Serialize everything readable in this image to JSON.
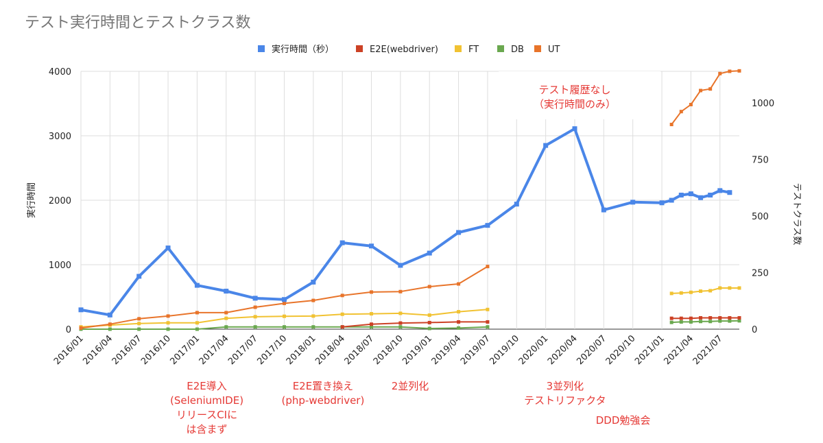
{
  "chart_data": {
    "type": "line",
    "title": "テスト実行時間とテストクラス数",
    "legend_position": "top",
    "grid": true,
    "y_left": {
      "label": "実行時間",
      "range": [
        0,
        4000
      ],
      "ticks": [
        "0",
        "1000",
        "2000",
        "3000",
        "4000"
      ],
      "tick_values": [
        0,
        1000,
        2000,
        3000,
        4000
      ]
    },
    "y_right": {
      "label": "テストクラス数",
      "range": [
        0,
        1140
      ],
      "ticks": [
        "0",
        "250",
        "500",
        "750",
        "1000"
      ],
      "tick_values": [
        0,
        250,
        500,
        750,
        1000
      ]
    },
    "x_ticks": [
      "2016/01",
      "2016/04",
      "2016/07",
      "2016/10",
      "2017/01",
      "2017/04",
      "2017/07",
      "2017/10",
      "2018/01",
      "2018/04",
      "2018/07",
      "2018/10",
      "2019/01",
      "2019/04",
      "2019/07",
      "2019/10",
      "2020/01",
      "2020/04",
      "2020/07",
      "2020/10",
      "2021/01",
      "2021/04",
      "2021/07"
    ],
    "series": [
      {
        "name": "実行時間（秒）",
        "axis": "left",
        "color": "#4a86e8",
        "points": [
          [
            "2016/01",
            300
          ],
          [
            "2016/04",
            220
          ],
          [
            "2016/07",
            820
          ],
          [
            "2016/10",
            1260
          ],
          [
            "2017/01",
            680
          ],
          [
            "2017/04",
            590
          ],
          [
            "2017/07",
            480
          ],
          [
            "2017/10",
            460
          ],
          [
            "2018/01",
            730
          ],
          [
            "2018/04",
            1340
          ],
          [
            "2018/07",
            1290
          ],
          [
            "2018/10",
            990
          ],
          [
            "2019/01",
            1180
          ],
          [
            "2019/04",
            1500
          ],
          [
            "2019/07",
            1610
          ],
          [
            "2019/10",
            1940
          ],
          [
            "2020/01",
            2850
          ],
          [
            "2020/04",
            3110
          ],
          [
            "2020/07",
            1850
          ],
          [
            "2020/10",
            1970
          ],
          [
            "2021/01",
            1960
          ],
          [
            "2021/02",
            2000
          ],
          [
            "2021/03",
            2080
          ],
          [
            "2021/04",
            2100
          ],
          [
            "2021/05",
            2040
          ],
          [
            "2021/06",
            2080
          ],
          [
            "2021/07",
            2150
          ],
          [
            "2021/08",
            2120
          ]
        ]
      },
      {
        "name": "E2E(webdriver)",
        "axis": "right",
        "color": "#cc4125",
        "points": [
          [
            "2018/04",
            10
          ],
          [
            "2018/07",
            22
          ],
          [
            "2018/10",
            27
          ],
          [
            "2019/01",
            29
          ],
          [
            "2019/04",
            32
          ],
          [
            "2019/07",
            32
          ],
          [
            "2021/02",
            48
          ],
          [
            "2021/03",
            48
          ],
          [
            "2021/04",
            48
          ],
          [
            "2021/05",
            50
          ],
          [
            "2021/06",
            50
          ],
          [
            "2021/07",
            50
          ],
          [
            "2021/08",
            50
          ],
          [
            "2021/09",
            50
          ]
        ]
      },
      {
        "name": "FT",
        "axis": "right",
        "color": "#f1c232",
        "points": [
          [
            "2016/01",
            10
          ],
          [
            "2016/04",
            18
          ],
          [
            "2016/07",
            25
          ],
          [
            "2016/10",
            28
          ],
          [
            "2017/01",
            28
          ],
          [
            "2017/04",
            48
          ],
          [
            "2017/07",
            55
          ],
          [
            "2017/10",
            57
          ],
          [
            "2018/01",
            58
          ],
          [
            "2018/04",
            66
          ],
          [
            "2018/07",
            68
          ],
          [
            "2018/10",
            70
          ],
          [
            "2019/01",
            62
          ],
          [
            "2019/04",
            77
          ],
          [
            "2019/07",
            87
          ],
          [
            "2021/02",
            158
          ],
          [
            "2021/03",
            160
          ],
          [
            "2021/04",
            163
          ],
          [
            "2021/05",
            168
          ],
          [
            "2021/06",
            170
          ],
          [
            "2021/07",
            182
          ],
          [
            "2021/08",
            182
          ],
          [
            "2021/09",
            182
          ]
        ]
      },
      {
        "name": "DB",
        "axis": "right",
        "color": "#6aa84f",
        "points": [
          [
            "2016/01",
            0
          ],
          [
            "2016/04",
            0
          ],
          [
            "2016/07",
            0
          ],
          [
            "2016/10",
            0
          ],
          [
            "2017/01",
            0
          ],
          [
            "2017/04",
            10
          ],
          [
            "2017/07",
            10
          ],
          [
            "2017/10",
            10
          ],
          [
            "2018/01",
            10
          ],
          [
            "2018/04",
            10
          ],
          [
            "2018/07",
            10
          ],
          [
            "2018/10",
            10
          ],
          [
            "2019/01",
            3
          ],
          [
            "2019/04",
            5
          ],
          [
            "2019/07",
            10
          ],
          [
            "2021/02",
            30
          ],
          [
            "2021/03",
            32
          ],
          [
            "2021/04",
            32
          ],
          [
            "2021/05",
            34
          ],
          [
            "2021/06",
            34
          ],
          [
            "2021/07",
            36
          ],
          [
            "2021/08",
            36
          ],
          [
            "2021/09",
            37
          ]
        ]
      },
      {
        "name": "UT",
        "axis": "right",
        "color": "#e8742a",
        "points": [
          [
            "2016/01",
            5
          ],
          [
            "2016/04",
            22
          ],
          [
            "2016/07",
            46
          ],
          [
            "2016/10",
            58
          ],
          [
            "2017/01",
            73
          ],
          [
            "2017/04",
            73
          ],
          [
            "2017/07",
            97
          ],
          [
            "2017/10",
            114
          ],
          [
            "2018/01",
            127
          ],
          [
            "2018/04",
            149
          ],
          [
            "2018/07",
            164
          ],
          [
            "2018/10",
            166
          ],
          [
            "2019/01",
            188
          ],
          [
            "2019/04",
            200
          ],
          [
            "2019/07",
            277
          ],
          [
            "2021/02",
            905
          ],
          [
            "2021/03",
            962
          ],
          [
            "2021/04",
            993
          ],
          [
            "2021/05",
            1055
          ],
          [
            "2021/06",
            1062
          ],
          [
            "2021/07",
            1130
          ],
          [
            "2021/08",
            1140
          ],
          [
            "2021/09",
            1142
          ]
        ]
      }
    ],
    "annotations": [
      {
        "x": "2017/02",
        "lines": [
          "E2E導入",
          "(SeleniumIDE)",
          "リリースCIに",
          "は含まず"
        ]
      },
      {
        "x": "2018/02",
        "lines": [
          "E2E置き換え",
          "(php-webdriver)"
        ]
      },
      {
        "x": "2018/11",
        "lines": [
          "2並列化"
        ]
      },
      {
        "x": "2020/03",
        "lines": [
          "3並列化",
          "テストリファクタ"
        ]
      },
      {
        "x": "2020/09",
        "lines": [
          "DDD勉強会"
        ]
      },
      {
        "x": "2020/04",
        "position": "top",
        "lines": [
          "テスト履歴なし",
          "（実行時間のみ）"
        ]
      }
    ]
  }
}
